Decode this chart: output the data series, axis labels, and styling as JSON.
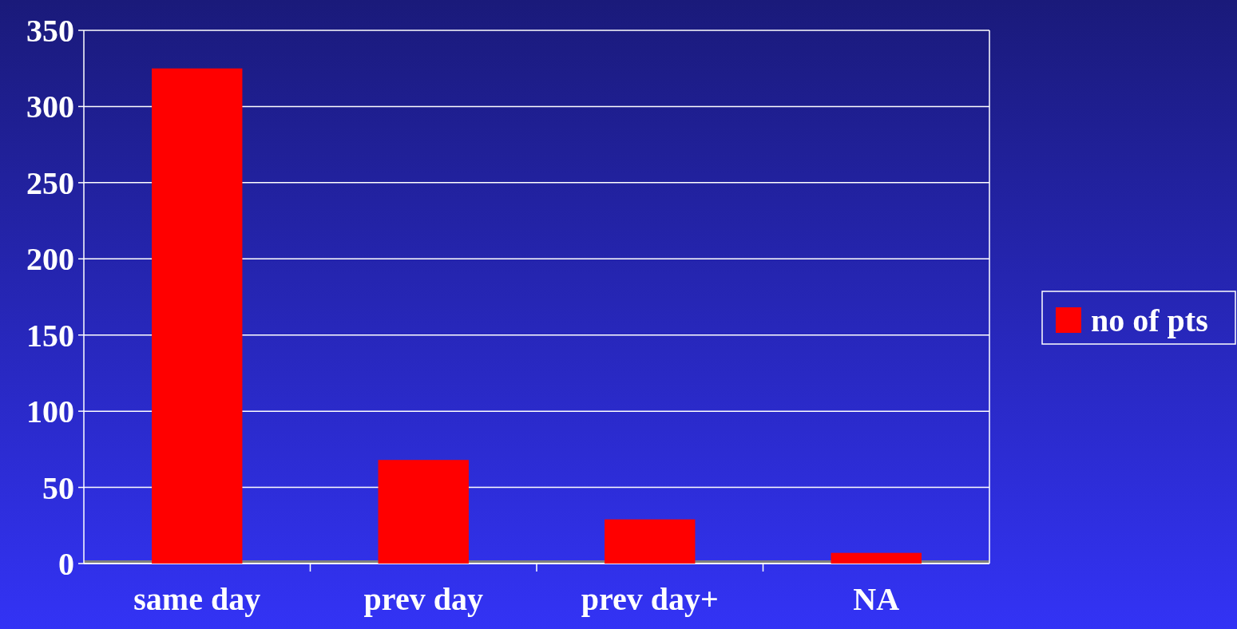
{
  "chart_data": {
    "type": "bar",
    "categories": [
      "same day",
      "prev day",
      "prev day+",
      "NA"
    ],
    "series": [
      {
        "name": "no of pts",
        "color": "#ff0000",
        "values": [
          325,
          68,
          29,
          7
        ]
      }
    ],
    "ylim": [
      0,
      350
    ],
    "yticks": [
      0,
      50,
      100,
      150,
      200,
      250,
      300,
      350
    ],
    "grid": "y",
    "legend": "right"
  }
}
